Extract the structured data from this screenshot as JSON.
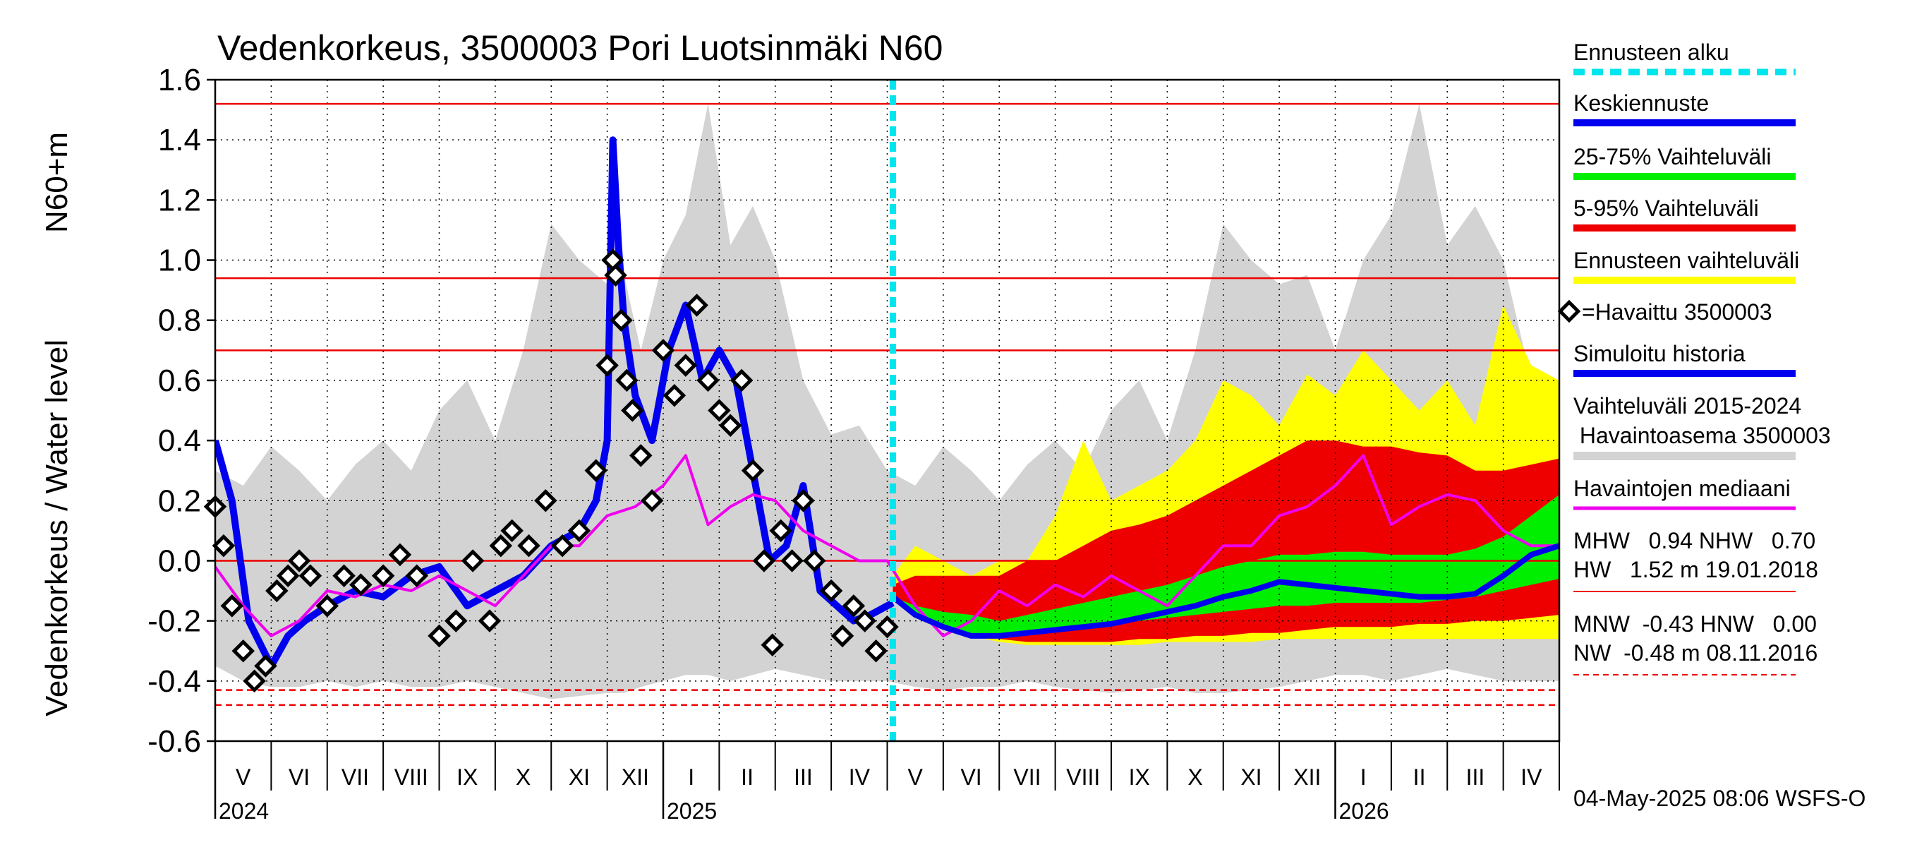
{
  "chart_data": {
    "type": "line",
    "title": "Vedenkorkeus, 3500003 Pori Luotsinmäki N60",
    "ylabel_left": "Vedenkorkeus / Water level",
    "ylabel_right": "N60+m",
    "ylim": [
      -0.6,
      1.6
    ],
    "y_ticks": [
      -0.6,
      -0.4,
      -0.2,
      0.0,
      0.2,
      0.4,
      0.6,
      0.8,
      1.0,
      1.2,
      1.4,
      1.6
    ],
    "y_tick_labels": [
      "-0.6",
      "-0.4",
      "-0.2",
      "0.0",
      "0.2",
      "0.4",
      "0.6",
      "0.8",
      "1.0",
      "1.2",
      "1.4",
      "1.6"
    ],
    "x_range_months": [
      0,
      24
    ],
    "month_labels": [
      "V",
      "VI",
      "VII",
      "VIII",
      "IX",
      "X",
      "XI",
      "XII",
      "I",
      "II",
      "III",
      "IV",
      "V",
      "VI",
      "VII",
      "VIII",
      "IX",
      "X",
      "XI",
      "XII",
      "I",
      "II",
      "III",
      "IV"
    ],
    "year_labels": [
      {
        "label": "2024",
        "month": 0
      },
      {
        "label": "2025",
        "month": 8
      },
      {
        "label": "2026",
        "month": 20
      }
    ],
    "forecast_start_month": 12.1,
    "reference_lines": {
      "HW": 1.52,
      "MHW": 0.94,
      "NHW": 0.7,
      "HNW": 0.0,
      "MNW": -0.43,
      "NW": -0.48
    },
    "timestamp": "04-May-2025 08:06 WSFS-O",
    "legend": {
      "forecast_start": "Ennusteen alku",
      "mean_forecast": "Keskiennuste",
      "band_25_75": "25-75% Vaihteluväli",
      "band_5_95": "5-95% Vaihteluväli",
      "forecast_range": "Ennusteen vaihteluväli",
      "observed": "=Havaittu 3500003",
      "simulated": "Simuloitu historia",
      "hist_range_1": "Vaihteluväli 2015-2024",
      "hist_range_2": " Havaintoasema 3500003",
      "median": "Havaintojen mediaani",
      "stats_1": "MHW   0.94 NHW   0.70",
      "stats_2": "HW   1.52 m 19.01.2018",
      "stats_3": "MNW  -0.43 HNW   0.00",
      "stats_4": "NW  -0.48 m 08.11.2016"
    },
    "colors": {
      "forecast_start": "#00e5ee",
      "mean_forecast": "#0000ee",
      "band_25_75": "#00ee00",
      "band_5_95": "#ee0000",
      "forecast_range": "#ffff00",
      "simulated": "#0000ee",
      "hist_range": "#d3d3d3",
      "median": "#ee00ee",
      "ref_line": "#ee0000"
    },
    "hist_range": {
      "x": [
        0,
        0.5,
        1,
        1.5,
        2,
        2.5,
        3,
        3.5,
        4,
        4.5,
        5,
        5.5,
        6,
        6.5,
        7,
        7.3,
        7.6,
        8,
        8.4,
        8.8,
        9.2,
        9.6,
        10,
        10.5,
        11,
        11.5,
        12,
        12.5,
        13,
        13.5,
        14,
        14.5,
        15,
        15.5,
        16,
        16.5,
        17,
        17.5,
        18,
        18.5,
        19,
        19.5,
        20,
        20.5,
        21,
        21.5,
        22,
        22.5,
        23,
        23.5,
        24
      ],
      "lower": [
        -0.35,
        -0.4,
        -0.42,
        -0.42,
        -0.4,
        -0.42,
        -0.4,
        -0.42,
        -0.42,
        -0.4,
        -0.42,
        -0.44,
        -0.46,
        -0.45,
        -0.44,
        -0.44,
        -0.42,
        -0.4,
        -0.38,
        -0.38,
        -0.4,
        -0.38,
        -0.36,
        -0.38,
        -0.4,
        -0.4,
        -0.4,
        -0.42,
        -0.43,
        -0.42,
        -0.42,
        -0.4,
        -0.42,
        -0.43,
        -0.44,
        -0.43,
        -0.42,
        -0.44,
        -0.44,
        -0.43,
        -0.42,
        -0.4,
        -0.38,
        -0.38,
        -0.4,
        -0.38,
        -0.36,
        -0.38,
        -0.4,
        -0.4,
        -0.4
      ],
      "upper": [
        0.3,
        0.25,
        0.38,
        0.3,
        0.2,
        0.32,
        0.4,
        0.3,
        0.5,
        0.6,
        0.4,
        0.7,
        1.12,
        1.0,
        0.92,
        0.95,
        0.7,
        1.0,
        1.15,
        1.52,
        1.05,
        1.18,
        1.0,
        0.6,
        0.42,
        0.45,
        0.3,
        0.25,
        0.38,
        0.3,
        0.2,
        0.32,
        0.4,
        0.3,
        0.5,
        0.6,
        0.4,
        0.7,
        1.12,
        1.0,
        0.92,
        0.95,
        0.7,
        1.0,
        1.15,
        1.52,
        1.05,
        1.18,
        1.0,
        0.6,
        0.42
      ]
    },
    "forecast_range": {
      "x": [
        12.1,
        12.5,
        13,
        13.5,
        14,
        14.5,
        15,
        15.5,
        16,
        16.5,
        17,
        17.5,
        18,
        18.5,
        19,
        19.5,
        20,
        20.5,
        21,
        21.5,
        22,
        22.5,
        23,
        23.5,
        24
      ],
      "lower": [
        -0.12,
        -0.18,
        -0.22,
        -0.25,
        -0.27,
        -0.28,
        -0.28,
        -0.28,
        -0.28,
        -0.28,
        -0.27,
        -0.27,
        -0.27,
        -0.27,
        -0.26,
        -0.26,
        -0.26,
        -0.26,
        -0.26,
        -0.26,
        -0.26,
        -0.26,
        -0.26,
        -0.26,
        -0.26
      ],
      "upper": [
        -0.05,
        0.05,
        0.0,
        -0.05,
        0.0,
        0.0,
        0.15,
        0.4,
        0.2,
        0.25,
        0.3,
        0.4,
        0.6,
        0.55,
        0.45,
        0.62,
        0.55,
        0.7,
        0.6,
        0.5,
        0.6,
        0.45,
        0.85,
        0.65,
        0.6
      ]
    },
    "band_5_95": {
      "x": [
        12.1,
        12.5,
        13,
        13.5,
        14,
        14.5,
        15,
        15.5,
        16,
        16.5,
        17,
        17.5,
        18,
        18.5,
        19,
        19.5,
        20,
        20.5,
        21,
        21.5,
        22,
        22.5,
        23,
        23.5,
        24
      ],
      "lower": [
        -0.12,
        -0.16,
        -0.2,
        -0.23,
        -0.26,
        -0.27,
        -0.27,
        -0.27,
        -0.27,
        -0.26,
        -0.26,
        -0.25,
        -0.25,
        -0.24,
        -0.24,
        -0.23,
        -0.22,
        -0.22,
        -0.22,
        -0.21,
        -0.21,
        -0.2,
        -0.2,
        -0.19,
        -0.18
      ],
      "upper": [
        -0.08,
        -0.05,
        -0.05,
        -0.05,
        -0.05,
        0.0,
        0.0,
        0.05,
        0.1,
        0.12,
        0.15,
        0.2,
        0.25,
        0.3,
        0.35,
        0.4,
        0.4,
        0.38,
        0.38,
        0.36,
        0.35,
        0.3,
        0.3,
        0.32,
        0.34
      ]
    },
    "band_25_75": {
      "x": [
        12.1,
        12.5,
        13,
        13.5,
        14,
        14.5,
        15,
        15.5,
        16,
        16.5,
        17,
        17.5,
        18,
        18.5,
        19,
        19.5,
        20,
        20.5,
        21,
        21.5,
        22,
        22.5,
        23,
        23.5,
        24
      ],
      "lower": [
        -0.13,
        -0.17,
        -0.22,
        -0.24,
        -0.25,
        -0.24,
        -0.23,
        -0.22,
        -0.21,
        -0.2,
        -0.19,
        -0.18,
        -0.17,
        -0.16,
        -0.15,
        -0.15,
        -0.14,
        -0.14,
        -0.14,
        -0.14,
        -0.13,
        -0.12,
        -0.1,
        -0.08,
        -0.06
      ],
      "upper": [
        -0.12,
        -0.15,
        -0.17,
        -0.18,
        -0.2,
        -0.18,
        -0.16,
        -0.14,
        -0.12,
        -0.1,
        -0.08,
        -0.05,
        -0.02,
        0.0,
        0.02,
        0.02,
        0.03,
        0.03,
        0.02,
        0.02,
        0.02,
        0.04,
        0.08,
        0.15,
        0.22
      ]
    },
    "mean_forecast": {
      "x": [
        12.1,
        12.5,
        13,
        13.5,
        14,
        14.5,
        15,
        15.5,
        16,
        16.5,
        17,
        17.5,
        18,
        18.5,
        19,
        19.5,
        20,
        20.5,
        21,
        21.5,
        22,
        22.5,
        23,
        23.5,
        24
      ],
      "y": [
        -0.12,
        -0.18,
        -0.22,
        -0.25,
        -0.25,
        -0.24,
        -0.23,
        -0.22,
        -0.21,
        -0.19,
        -0.17,
        -0.15,
        -0.12,
        -0.1,
        -0.07,
        -0.08,
        -0.09,
        -0.1,
        -0.11,
        -0.12,
        -0.12,
        -0.11,
        -0.05,
        0.02,
        0.05
      ]
    },
    "simulated": {
      "x": [
        0,
        0.3,
        0.6,
        1,
        1.3,
        1.6,
        2,
        2.5,
        3,
        3.5,
        4,
        4.5,
        5,
        5.5,
        6,
        6.5,
        6.8,
        7,
        7.1,
        7.2,
        7.3,
        7.5,
        7.8,
        8.1,
        8.4,
        8.7,
        9,
        9.3,
        9.6,
        9.9,
        10.2,
        10.5,
        10.8,
        11.1,
        11.4,
        11.7,
        12,
        12.1
      ],
      "y": [
        0.4,
        0.2,
        -0.2,
        -0.35,
        -0.25,
        -0.2,
        -0.15,
        -0.1,
        -0.12,
        -0.05,
        -0.02,
        -0.15,
        -0.1,
        -0.05,
        0.05,
        0.1,
        0.2,
        0.4,
        1.4,
        1.05,
        0.8,
        0.55,
        0.4,
        0.7,
        0.85,
        0.6,
        0.7,
        0.6,
        0.3,
        0.0,
        0.05,
        0.25,
        -0.1,
        -0.15,
        -0.2,
        -0.18,
        -0.15,
        -0.14
      ]
    },
    "median": {
      "x": [
        0,
        0.5,
        1,
        1.5,
        2,
        2.5,
        3,
        3.5,
        4,
        4.5,
        5,
        5.5,
        6,
        6.5,
        7,
        7.5,
        8,
        8.4,
        8.8,
        9.2,
        9.6,
        10,
        10.5,
        11,
        11.5,
        12,
        12.5,
        13,
        13.5,
        14,
        14.5,
        15,
        15.5,
        16,
        16.5,
        17,
        17.5,
        18,
        18.5,
        19,
        19.5,
        20,
        20.5,
        21,
        21.5,
        22,
        22.5,
        23,
        23.5,
        24
      ],
      "y": [
        -0.02,
        -0.15,
        -0.25,
        -0.2,
        -0.1,
        -0.12,
        -0.08,
        -0.1,
        -0.05,
        -0.1,
        -0.15,
        -0.05,
        0.05,
        0.05,
        0.15,
        0.18,
        0.25,
        0.35,
        0.12,
        0.18,
        0.22,
        0.2,
        0.1,
        0.05,
        0.0,
        0.0,
        -0.15,
        -0.25,
        -0.2,
        -0.1,
        -0.15,
        -0.08,
        -0.12,
        -0.05,
        -0.1,
        -0.15,
        -0.05,
        0.05,
        0.05,
        0.15,
        0.18,
        0.25,
        0.35,
        0.12,
        0.18,
        0.22,
        0.2,
        0.1,
        0.05,
        0.05
      ],
      "note": "observation median recurs yearly"
    },
    "observed": {
      "x": [
        0,
        0.15,
        0.3,
        0.5,
        0.7,
        0.9,
        1.1,
        1.3,
        1.5,
        1.7,
        2,
        2.3,
        2.6,
        3,
        3.3,
        3.6,
        4,
        4.3,
        4.6,
        4.9,
        5.1,
        5.3,
        5.6,
        5.9,
        6.2,
        6.5,
        6.8,
        7.0,
        7.1,
        7.15,
        7.25,
        7.35,
        7.45,
        7.6,
        7.8,
        8.0,
        8.2,
        8.4,
        8.6,
        8.8,
        9.0,
        9.2,
        9.4,
        9.6,
        9.8,
        9.95,
        10.1,
        10.3,
        10.5,
        10.7,
        11.0,
        11.2,
        11.4,
        11.6,
        11.8,
        12.0
      ],
      "y": [
        0.18,
        0.05,
        -0.15,
        -0.3,
        -0.4,
        -0.35,
        -0.1,
        -0.05,
        0.0,
        -0.05,
        -0.15,
        -0.05,
        -0.08,
        -0.05,
        0.02,
        -0.05,
        -0.25,
        -0.2,
        0.0,
        -0.2,
        0.05,
        0.1,
        0.05,
        0.2,
        0.05,
        0.1,
        0.3,
        0.65,
        1.0,
        0.95,
        0.8,
        0.6,
        0.5,
        0.35,
        0.2,
        0.7,
        0.55,
        0.65,
        0.85,
        0.6,
        0.5,
        0.45,
        0.6,
        0.3,
        0.0,
        -0.28,
        0.1,
        0.0,
        0.2,
        0.0,
        -0.1,
        -0.25,
        -0.15,
        -0.2,
        -0.3,
        -0.22
      ]
    }
  }
}
